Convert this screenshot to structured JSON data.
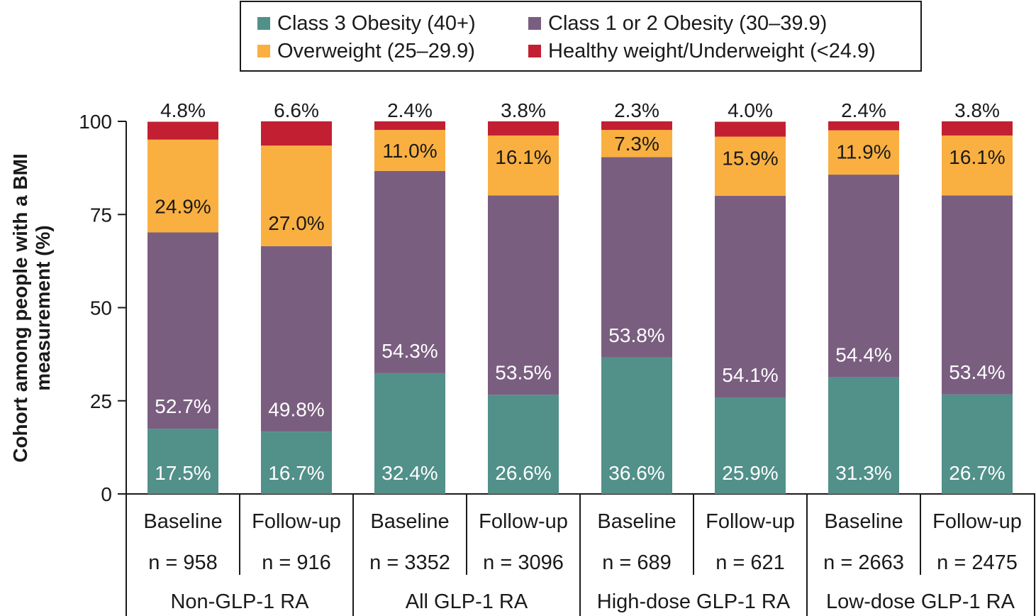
{
  "legend": [
    {
      "label": "Class 3 Obesity (40+)",
      "color": "#52908a"
    },
    {
      "label": "Class 1 or 2 Obesity (30–39.9)",
      "color": "#7a5e80"
    },
    {
      "label": "Overweight (25–29.9)",
      "color": "#f9b041"
    },
    {
      "label": "Healthy weight/Underweight (<24.9)",
      "color": "#c31f33"
    }
  ],
  "chart_data": {
    "type": "bar",
    "stacked": true,
    "ylabel": "Cohort among people with a BMI measurement (%)",
    "ylim": [
      0,
      100
    ],
    "yticks": [
      "0",
      "25",
      "50",
      "75",
      "100"
    ],
    "categories": [
      "Baseline",
      "Follow-up",
      "Baseline",
      "Follow-up",
      "Baseline",
      "Follow-up",
      "Baseline",
      "Follow-up"
    ],
    "n_labels": [
      "n = 958",
      "n = 916",
      "n = 3352",
      "n = 3096",
      "n = 689",
      "n = 621",
      "n = 2663",
      "n = 2475"
    ],
    "groups": [
      "Non-GLP-1 RA",
      "All GLP-1 RA",
      "High-dose GLP-1 RA",
      "Low-dose GLP-1 RA"
    ],
    "series": [
      {
        "name": "Class 3 Obesity (40+)",
        "values": [
          17.5,
          16.7,
          32.4,
          26.6,
          36.6,
          25.9,
          31.3,
          26.7
        ],
        "labels": [
          "17.5%",
          "16.7%",
          "32.4%",
          "26.6%",
          "36.6%",
          "25.9%",
          "31.3%",
          "26.7%"
        ]
      },
      {
        "name": "Class 1 or 2 Obesity (30–39.9)",
        "values": [
          52.7,
          49.8,
          54.3,
          53.5,
          53.8,
          54.1,
          54.4,
          53.4
        ],
        "labels": [
          "52.7%",
          "49.8%",
          "54.3%",
          "53.5%",
          "53.8%",
          "54.1%",
          "54.4%",
          "53.4%"
        ]
      },
      {
        "name": "Overweight (25–29.9)",
        "values": [
          24.9,
          27.0,
          11.0,
          16.1,
          7.3,
          15.9,
          11.9,
          16.1
        ],
        "labels": [
          "24.9%",
          "27.0%",
          "11.0%",
          "16.1%",
          "7.3%",
          "15.9%",
          "11.9%",
          "16.1%"
        ]
      },
      {
        "name": "Healthy weight/Underweight (<24.9)",
        "values": [
          4.8,
          6.6,
          2.4,
          3.8,
          2.3,
          4.0,
          2.4,
          3.8
        ],
        "labels": [
          "4.8%",
          "6.6%",
          "2.4%",
          "3.8%",
          "2.3%",
          "4.0%",
          "2.4%",
          "3.8%"
        ]
      }
    ]
  }
}
